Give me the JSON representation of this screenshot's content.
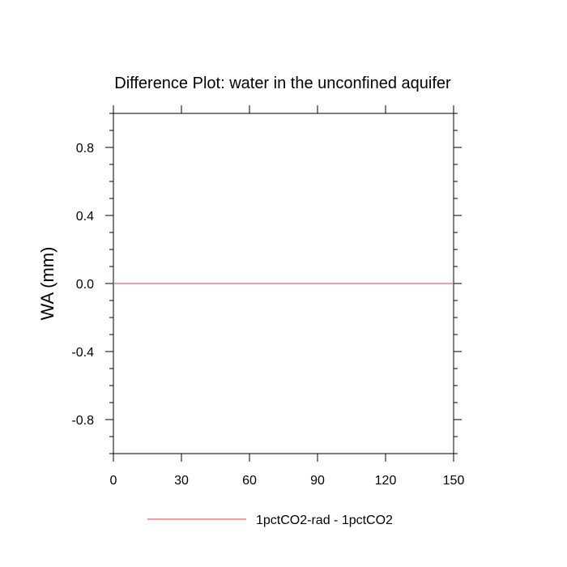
{
  "chart_data": {
    "type": "line",
    "title": "Difference Plot: water in the unconfined aquifer",
    "ylabel": "WA  (mm)",
    "xlabel": "",
    "xlim": [
      0,
      150
    ],
    "ylim": [
      -1.0,
      1.0
    ],
    "x_ticks": [
      0,
      30,
      60,
      90,
      120,
      150
    ],
    "x_tick_labels": [
      "0",
      "30",
      "60",
      "90",
      "120",
      "150"
    ],
    "y_ticks": [
      -0.8,
      -0.4,
      0.0,
      0.4,
      0.8
    ],
    "y_tick_labels": [
      "-0.8",
      "-0.4",
      "0.0",
      "0.4",
      "0.8"
    ],
    "legend_placement": "bottom-center",
    "grid": false,
    "series": [
      {
        "name": "1pctCO2-rad - 1pctCO2",
        "color": "#e8807f",
        "x": [
          0,
          150
        ],
        "y": [
          0.0,
          0.0
        ]
      }
    ]
  }
}
